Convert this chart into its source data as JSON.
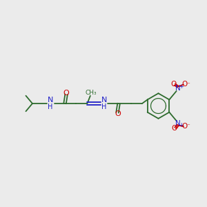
{
  "background_color": "#ebebeb",
  "bond_color": "#2d6b2d",
  "N_color": "#2020c8",
  "O_color": "#cc0000",
  "figsize": [
    3.0,
    3.0
  ],
  "dpi": 100,
  "xlim": [
    0,
    10
  ],
  "ylim": [
    2,
    8
  ]
}
